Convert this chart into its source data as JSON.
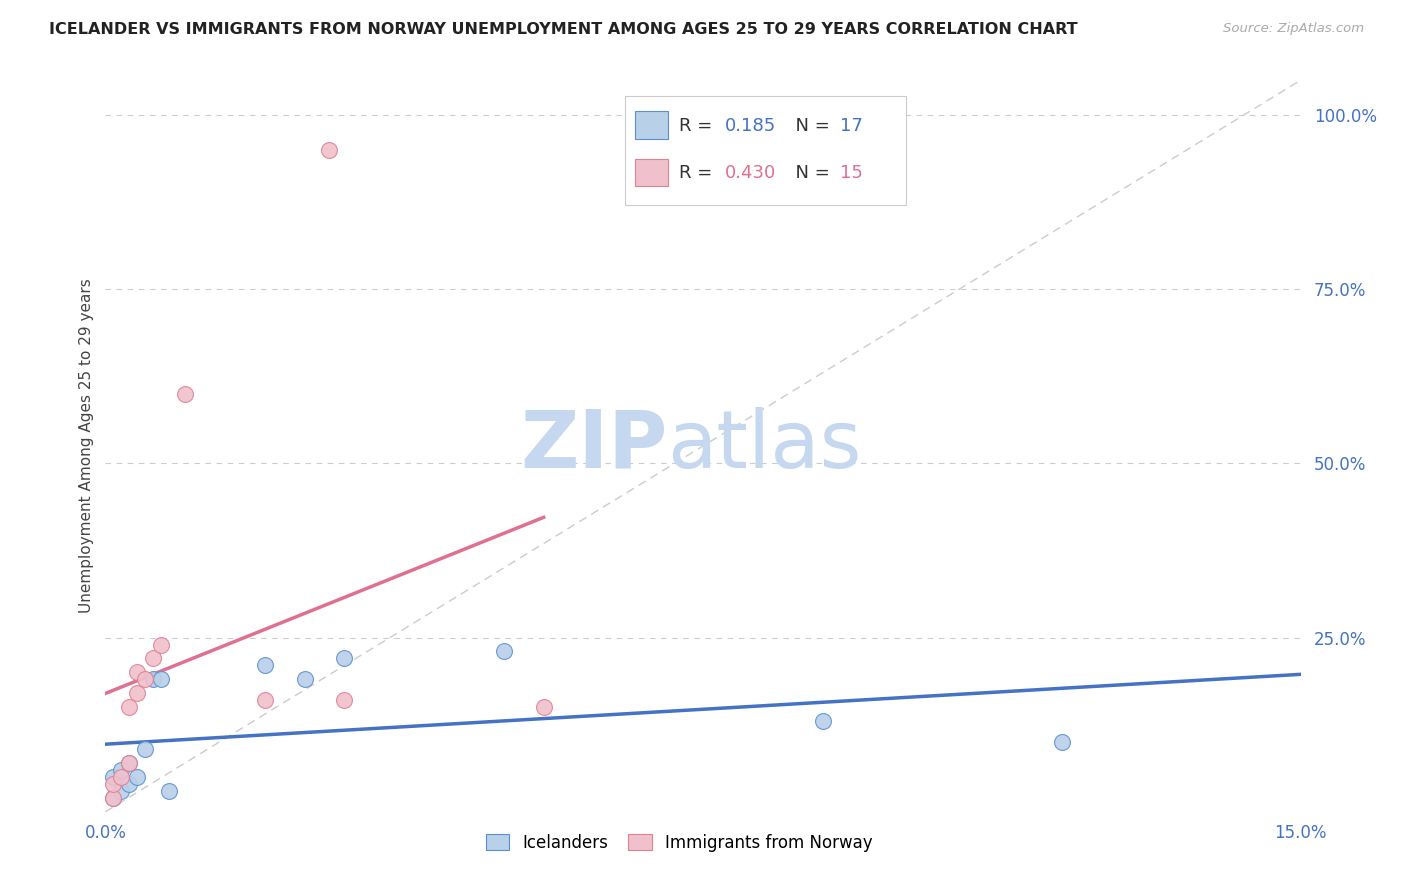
{
  "title": "ICELANDER VS IMMIGRANTS FROM NORWAY UNEMPLOYMENT AMONG AGES 25 TO 29 YEARS CORRELATION CHART",
  "source": "Source: ZipAtlas.com",
  "ylabel": "Unemployment Among Ages 25 to 29 years",
  "xlim": [
    0.0,
    0.15
  ],
  "ylim": [
    0.0,
    1.05
  ],
  "ytick_vals_right": [
    1.0,
    0.75,
    0.5,
    0.25
  ],
  "grid_color": "#cccccc",
  "background_color": "#ffffff",
  "icelanders": {
    "label": "Icelanders",
    "face_color": "#b8d0e8",
    "edge_color": "#5b8fd4",
    "R": 0.185,
    "N": 17,
    "x": [
      0.001,
      0.001,
      0.002,
      0.002,
      0.003,
      0.003,
      0.004,
      0.005,
      0.006,
      0.007,
      0.008,
      0.02,
      0.025,
      0.03,
      0.05,
      0.09,
      0.12
    ],
    "y": [
      0.02,
      0.05,
      0.03,
      0.06,
      0.04,
      0.07,
      0.05,
      0.09,
      0.19,
      0.19,
      0.03,
      0.21,
      0.19,
      0.22,
      0.23,
      0.13,
      0.1
    ]
  },
  "norway": {
    "label": "Immigrants from Norway",
    "face_color": "#f0c0cc",
    "edge_color": "#e08090",
    "R": 0.43,
    "N": 15,
    "x": [
      0.001,
      0.001,
      0.002,
      0.003,
      0.003,
      0.004,
      0.004,
      0.005,
      0.006,
      0.007,
      0.01,
      0.02,
      0.03,
      0.055,
      0.028
    ],
    "y": [
      0.02,
      0.04,
      0.05,
      0.07,
      0.15,
      0.17,
      0.2,
      0.19,
      0.22,
      0.24,
      0.6,
      0.16,
      0.16,
      0.15,
      0.95
    ]
  },
  "blue_line_color": "#4472c4",
  "pink_line_color": "#e07090",
  "diagonal_line_color": "#cccccc",
  "watermark_zip": "ZIP",
  "watermark_atlas": "atlas",
  "watermark_color_zip": "#c5d8ef",
  "watermark_color_atlas": "#c5d8ef",
  "marker_size": 130
}
